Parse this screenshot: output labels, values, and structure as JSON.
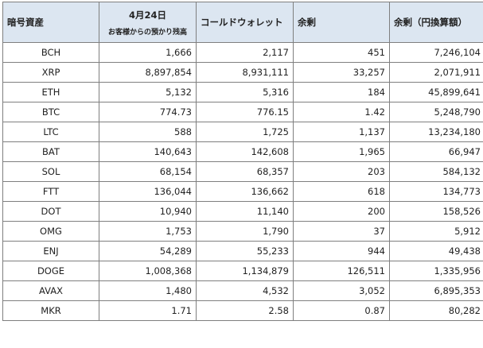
{
  "headers": {
    "asset": "暗号資産",
    "date_main": "4月24日",
    "date_sub": "お客様からの預かり残高",
    "cold_wallet": "コールドウォレット",
    "surplus": "余剰",
    "surplus_jpy": "余剰（円換算額）"
  },
  "rows": [
    {
      "asset": "BCH",
      "customer": "1,666",
      "cold": "2,117",
      "surplus": "451",
      "surplus_jpy": "7,246,104"
    },
    {
      "asset": "XRP",
      "customer": "8,897,854",
      "cold": "8,931,111",
      "surplus": "33,257",
      "surplus_jpy": "2,071,911"
    },
    {
      "asset": "ETH",
      "customer": "5,132",
      "cold": "5,316",
      "surplus": "184",
      "surplus_jpy": "45,899,641"
    },
    {
      "asset": "BTC",
      "customer": "774.73",
      "cold": "776.15",
      "surplus": "1.42",
      "surplus_jpy": "5,248,790"
    },
    {
      "asset": "LTC",
      "customer": "588",
      "cold": "1,725",
      "surplus": "1,137",
      "surplus_jpy": "13,234,180"
    },
    {
      "asset": "BAT",
      "customer": "140,643",
      "cold": "142,608",
      "surplus": "1,965",
      "surplus_jpy": "66,947"
    },
    {
      "asset": "SOL",
      "customer": "68,154",
      "cold": "68,357",
      "surplus": "203",
      "surplus_jpy": "584,132"
    },
    {
      "asset": "FTT",
      "customer": "136,044",
      "cold": "136,662",
      "surplus": "618",
      "surplus_jpy": "134,773"
    },
    {
      "asset": "DOT",
      "customer": "10,940",
      "cold": "11,140",
      "surplus": "200",
      "surplus_jpy": "158,526"
    },
    {
      "asset": "OMG",
      "customer": "1,753",
      "cold": "1,790",
      "surplus": "37",
      "surplus_jpy": "5,912"
    },
    {
      "asset": "ENJ",
      "customer": "54,289",
      "cold": "55,233",
      "surplus": "944",
      "surplus_jpy": "49,438"
    },
    {
      "asset": "DOGE",
      "customer": "1,008,368",
      "cold": "1,134,879",
      "surplus": "126,511",
      "surplus_jpy": "1,335,956"
    },
    {
      "asset": "AVAX",
      "customer": "1,480",
      "cold": "4,532",
      "surplus": "3,052",
      "surplus_jpy": "6,895,353"
    },
    {
      "asset": "MKR",
      "customer": "1.71",
      "cold": "2.58",
      "surplus": "0.87",
      "surplus_jpy": "80,282"
    }
  ],
  "colors": {
    "header_bg": "#dce6f1",
    "border": "#7f7f7f",
    "text": "#222222"
  }
}
